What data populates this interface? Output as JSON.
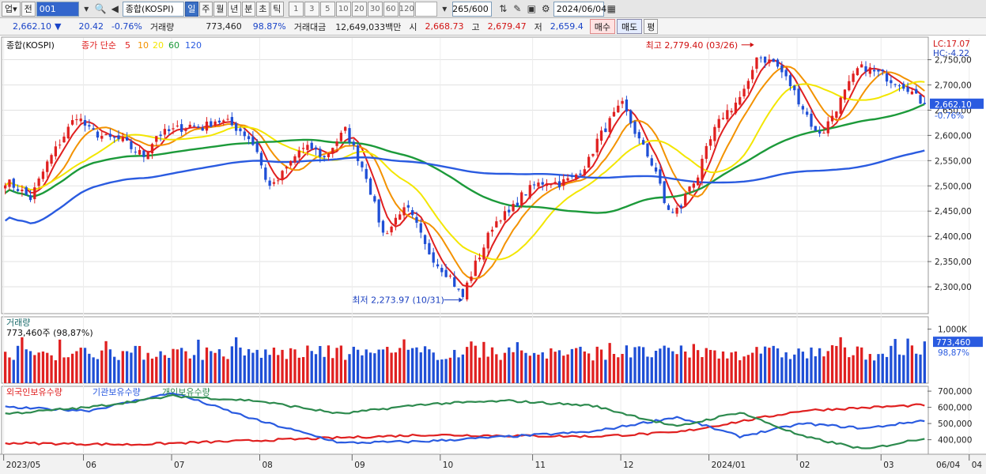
{
  "toolbar": {
    "market_btn": "업",
    "market_arrow": "▾",
    "prev_label": "전",
    "code": "001",
    "name": "종합(KOSPI)",
    "periods": [
      "일",
      "주",
      "월",
      "년",
      "분",
      "초",
      "틱"
    ],
    "active_period": "일",
    "intervals": [
      "1",
      "3",
      "5",
      "10",
      "20",
      "30",
      "60",
      "120"
    ],
    "count": "265/600",
    "date": "2024/06/04"
  },
  "quote": {
    "price": "2,662.10",
    "arrow": "▼",
    "change": "20.42",
    "change_pct": "-0.76%",
    "volume_label": "거래량",
    "volume": "773,460",
    "volume_ratio": "98.87%",
    "amount_label": "거래대금",
    "amount": "12,649,033백만",
    "open_label": "시",
    "open": "2,668.73",
    "high_label": "고",
    "high": "2,679.47",
    "low_label": "저",
    "low": "2,659.4",
    "buy_label": "매수",
    "sell_label": "매도",
    "eval_label": "평"
  },
  "colors": {
    "up": "#e02020",
    "down": "#1f4fd6",
    "ma5": "#e02020",
    "ma10": "#f39200",
    "ma20": "#f3e600",
    "ma60": "#1c9a3a",
    "ma120": "#2a5be0"
  },
  "chart_data": [
    {
      "type": "candlestick",
      "title": "종합(KOSPI)",
      "legend": {
        "price_label": "종가 단순",
        "ma": [
          "5",
          "10",
          "20",
          "60",
          "120"
        ]
      },
      "ylim": [
        2250,
        2790
      ],
      "yticks": [
        "2,750,00",
        "2,700,00",
        "2,650,00",
        "2,600,00",
        "2,550,00",
        "2,500,00",
        "2,450,00",
        "2,400,00",
        "2,350,00",
        "2,300,00"
      ],
      "ytick_values": [
        2750,
        2700,
        2650,
        2600,
        2550,
        2500,
        2450,
        2400,
        2350,
        2300
      ],
      "lc": "LC:17.07",
      "hc": "HC:-4.22",
      "last_price": "2,662.10",
      "last_pct": "-0.76%",
      "annotations": [
        {
          "text": "최고 2,779.40 (03/26)",
          "date_index": 178,
          "value": 2779.4
        },
        {
          "text": "최저 2,273.97 (10/31)",
          "date_index": 109,
          "value": 2273.97
        }
      ],
      "xticks": [
        "2023/05",
        "06",
        "07",
        "08",
        "09",
        "10",
        "11",
        "12",
        "2024/01",
        "02",
        "03",
        "04",
        "05",
        "06",
        "06/04"
      ],
      "close_anchors": [
        [
          0,
          2510
        ],
        [
          3,
          2495
        ],
        [
          6,
          2475
        ],
        [
          10,
          2545
        ],
        [
          14,
          2600
        ],
        [
          17,
          2640
        ],
        [
          20,
          2610
        ],
        [
          24,
          2595
        ],
        [
          28,
          2590
        ],
        [
          30,
          2575
        ],
        [
          33,
          2560
        ],
        [
          36,
          2600
        ],
        [
          40,
          2610
        ],
        [
          44,
          2620
        ],
        [
          47,
          2615
        ],
        [
          50,
          2630
        ],
        [
          53,
          2625
        ],
        [
          56,
          2610
        ],
        [
          58,
          2595
        ],
        [
          60,
          2570
        ],
        [
          62,
          2510
        ],
        [
          64,
          2500
        ],
        [
          67,
          2535
        ],
        [
          70,
          2570
        ],
        [
          73,
          2575
        ],
        [
          76,
          2555
        ],
        [
          79,
          2590
        ],
        [
          81,
          2610
        ],
        [
          83,
          2575
        ],
        [
          86,
          2520
        ],
        [
          88,
          2460
        ],
        [
          90,
          2405
        ],
        [
          92,
          2420
        ],
        [
          94,
          2450
        ],
        [
          96,
          2450
        ],
        [
          98,
          2420
        ],
        [
          100,
          2380
        ],
        [
          103,
          2345
        ],
        [
          106,
          2320
        ],
        [
          108,
          2290
        ],
        [
          109,
          2280
        ],
        [
          110,
          2305
        ],
        [
          112,
          2345
        ],
        [
          114,
          2380
        ],
        [
          116,
          2420
        ],
        [
          118,
          2440
        ],
        [
          120,
          2445
        ],
        [
          123,
          2480
        ],
        [
          126,
          2500
        ],
        [
          129,
          2510
        ],
        [
          132,
          2505
        ],
        [
          135,
          2515
        ],
        [
          137,
          2530
        ],
        [
          139,
          2550
        ],
        [
          141,
          2590
        ],
        [
          143,
          2615
        ],
        [
          145,
          2640
        ],
        [
          147,
          2660
        ],
        [
          149,
          2625
        ],
        [
          151,
          2590
        ],
        [
          153,
          2560
        ],
        [
          155,
          2530
        ],
        [
          157,
          2465
        ],
        [
          159,
          2445
        ],
        [
          161,
          2460
        ],
        [
          163,
          2500
        ],
        [
          165,
          2520
        ],
        [
          167,
          2570
        ],
        [
          169,
          2610
        ],
        [
          171,
          2640
        ],
        [
          173,
          2655
        ],
        [
          175,
          2675
        ],
        [
          177,
          2700
        ],
        [
          179,
          2760
        ],
        [
          181,
          2750
        ],
        [
          183,
          2745
        ],
        [
          185,
          2725
        ],
        [
          187,
          2700
        ],
        [
          189,
          2670
        ],
        [
          191,
          2640
        ],
        [
          193,
          2605
        ],
        [
          195,
          2610
        ],
        [
          197,
          2640
        ],
        [
          199,
          2670
        ],
        [
          201,
          2700
        ],
        [
          203,
          2730
        ],
        [
          205,
          2735
        ],
        [
          207,
          2725
        ],
        [
          209,
          2720
        ],
        [
          211,
          2710
        ],
        [
          213,
          2705
        ],
        [
          215,
          2695
        ],
        [
          217,
          2675
        ],
        [
          219,
          2662
        ]
      ],
      "series_info": {
        "n": 220,
        "ma_periods": [
          5,
          10,
          20,
          60,
          120
        ]
      }
    },
    {
      "type": "bar",
      "title": "거래량",
      "current": "773,460주 (98,87%)",
      "yticks": [
        "1,000K"
      ],
      "ytick_values": [
        1000000
      ],
      "last_value": "773,460",
      "last_ratio": "98,87%",
      "ylim": [
        0,
        1200000
      ]
    },
    {
      "type": "line",
      "title": "외국인보유수량",
      "series": [
        {
          "name": "외국인보유수량",
          "color": "#e02020",
          "anchors": [
            [
              0,
              380000
            ],
            [
              30,
              370000
            ],
            [
              60,
              395000
            ],
            [
              100,
              430000
            ],
            [
              140,
              420000
            ],
            [
              160,
              445000
            ],
            [
              190,
              580000
            ],
            [
              219,
              615000
            ]
          ]
        },
        {
          "name": "기관보유수량",
          "color": "#2a5be0",
          "anchors": [
            [
              0,
              600000
            ],
            [
              20,
              580000
            ],
            [
              40,
              690000
            ],
            [
              60,
              520000
            ],
            [
              80,
              380000
            ],
            [
              100,
              390000
            ],
            [
              120,
              420000
            ],
            [
              140,
              450000
            ],
            [
              160,
              540000
            ],
            [
              175,
              420000
            ],
            [
              190,
              500000
            ],
            [
              205,
              470000
            ],
            [
              219,
              520000
            ]
          ]
        },
        {
          "name": "개인보유수량",
          "color": "#2d8a4e",
          "anchors": [
            [
              0,
              560000
            ],
            [
              20,
              600000
            ],
            [
              40,
              670000
            ],
            [
              60,
              640000
            ],
            [
              80,
              560000
            ],
            [
              100,
              620000
            ],
            [
              120,
              640000
            ],
            [
              140,
              610000
            ],
            [
              160,
              480000
            ],
            [
              175,
              570000
            ],
            [
              190,
              420000
            ],
            [
              205,
              340000
            ],
            [
              219,
              410000
            ]
          ]
        }
      ],
      "yticks": [
        "700,000",
        "600,000",
        "500,000",
        "400,000"
      ],
      "ytick_values": [
        700000,
        600000,
        500000,
        400000
      ],
      "ylim": [
        320000,
        720000
      ]
    }
  ]
}
